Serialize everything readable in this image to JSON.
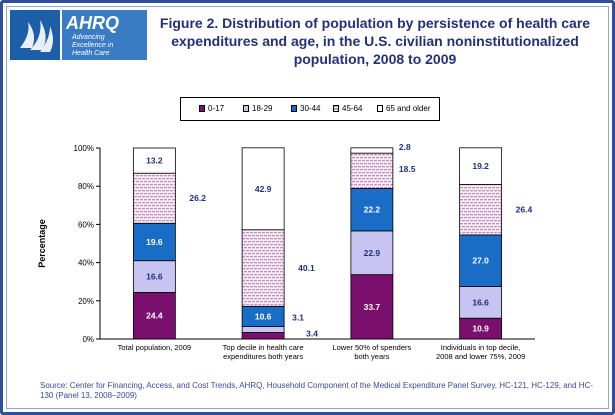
{
  "title": "Figure 2. Distribution of population by persistence of health care expenditures and age, in the U.S. civilian noninstitutionalized population, 2008 to 2009",
  "logo": {
    "ahrq_text": "AHRQ",
    "tagline_1": "Advancing",
    "tagline_2": "Excellence in",
    "tagline_3": "Health Care"
  },
  "source": "Source: Center for Financing, Access, and Cost Trends, AHRQ, Household Component of the Medical Expenditure Panel Survey, HC-121, HC-129, and HC-130 (Panel 13, 2008–2009)",
  "chart_data": {
    "type": "bar",
    "stacked": true,
    "ylabel": "Percentage",
    "ylim": [
      0,
      100
    ],
    "yticks": [
      "0%",
      "20%",
      "40%",
      "60%",
      "80%",
      "100%"
    ],
    "grid": false,
    "legend_position": "top",
    "categories": [
      [
        "Total population, 2009"
      ],
      [
        "Top decile in health care",
        "expenditures both years"
      ],
      [
        "Lower 50% of spenders",
        "both years"
      ],
      [
        "Individuals in top decile,",
        "2008 and lower 75%, 2009"
      ]
    ],
    "series": [
      {
        "name": "0-17",
        "color": "#7a0f6e",
        "pattern": "solid",
        "values": [
          24.4,
          3.4,
          33.7,
          10.9
        ]
      },
      {
        "name": "18-29",
        "color": "#c8c4f2",
        "pattern": "solid",
        "values": [
          16.6,
          3.1,
          22.9,
          16.6
        ]
      },
      {
        "name": "30-44",
        "color": "#1a6dc6",
        "pattern": "solid",
        "values": [
          19.6,
          10.6,
          22.2,
          27.0
        ]
      },
      {
        "name": "45-64",
        "color": "#c890c0",
        "pattern": "brick",
        "values": [
          26.2,
          40.1,
          18.5,
          26.4
        ]
      },
      {
        "name": "65 and older",
        "color": "#ffffff",
        "pattern": "solid",
        "values": [
          13.2,
          42.9,
          2.8,
          19.2
        ]
      }
    ],
    "data_labels": [
      [
        "24.4",
        "16.6",
        "19.6",
        "26.2",
        "13.2"
      ],
      [
        "3.4",
        "3.1",
        "10.6",
        "40.1",
        "42.9"
      ],
      [
        "33.7",
        "22.9",
        "22.2",
        "18.5",
        "2.8"
      ],
      [
        "10.9",
        "16.6",
        "27.0",
        "26.4",
        "19.2"
      ]
    ]
  }
}
